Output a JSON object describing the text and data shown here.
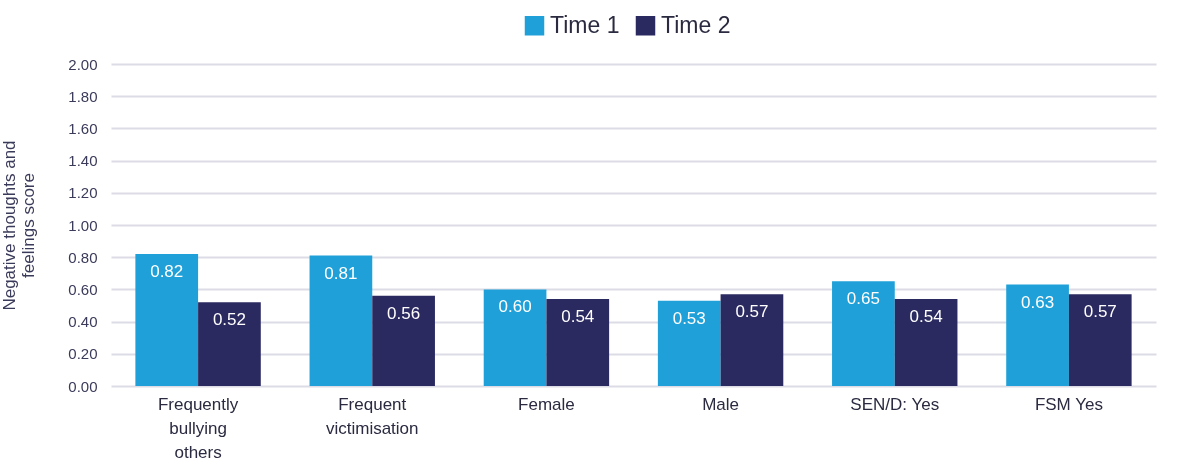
{
  "chart_data": {
    "type": "bar",
    "ylabel": "Negative thoughts and feelings score",
    "categories": [
      "Frequently bullying others",
      "Frequent victimisation",
      "Female",
      "Male",
      "SEN/D: Yes",
      "FSM Yes"
    ],
    "series": [
      {
        "name": "Time 1",
        "color": "#1fa0d8",
        "values": [
          0.82,
          0.81,
          0.6,
          0.53,
          0.65,
          0.63
        ],
        "value_labels": [
          "0.82",
          "0.81",
          "0.60",
          "0.53",
          "0.65",
          "0.63"
        ]
      },
      {
        "name": "Time 2",
        "color": "#2b2a60",
        "values": [
          0.52,
          0.56,
          0.54,
          0.57,
          0.54,
          0.57
        ],
        "value_labels": [
          "0.52",
          "0.56",
          "0.54",
          "0.57",
          "0.54",
          "0.57"
        ]
      }
    ],
    "ylim": [
      0,
      2
    ],
    "yticks": [
      {
        "value": 0,
        "label": "0.00"
      },
      {
        "value": 0.2,
        "label": "0.20"
      },
      {
        "value": 0.4,
        "label": "0.40"
      },
      {
        "value": 0.6,
        "label": "0.60"
      },
      {
        "value": 0.8,
        "label": "0.80"
      },
      {
        "value": 1,
        "label": "1.00"
      },
      {
        "value": 1.2,
        "label": "1.20"
      },
      {
        "value": 1.4,
        "label": "1.40"
      },
      {
        "value": 1.6,
        "label": "1.60"
      },
      {
        "value": 1.8,
        "label": "1.80"
      },
      {
        "value": 2,
        "label": "2.00"
      }
    ],
    "grid": "y",
    "legend": "top"
  }
}
